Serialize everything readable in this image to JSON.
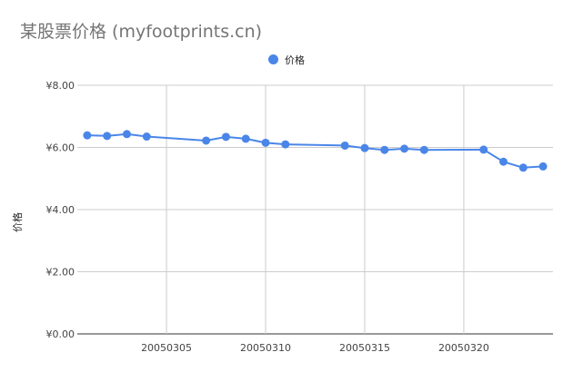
{
  "chart_data": {
    "type": "line",
    "title": "某股票价格 (myfootprints.cn)",
    "ylabel": "价格",
    "xlabel": "",
    "legend": {
      "position": "top",
      "entries": [
        "价格"
      ]
    },
    "grid": true,
    "ylim": [
      0,
      8
    ],
    "yticks": [
      "¥0.00",
      "¥2.00",
      "¥4.00",
      "¥6.00",
      "¥8.00"
    ],
    "xlim": [
      20050301,
      20050324
    ],
    "xticks": [
      "20050305",
      "20050310",
      "20050315",
      "20050320"
    ],
    "series": [
      {
        "name": "价格",
        "color": "#4a86e8",
        "points": [
          {
            "x": 20050301,
            "y": 6.39
          },
          {
            "x": 20050302,
            "y": 6.37
          },
          {
            "x": 20050303,
            "y": 6.43
          },
          {
            "x": 20050304,
            "y": 6.35
          },
          {
            "x": 20050307,
            "y": 6.22
          },
          {
            "x": 20050308,
            "y": 6.34
          },
          {
            "x": 20050309,
            "y": 6.28
          },
          {
            "x": 20050310,
            "y": 6.15
          },
          {
            "x": 20050311,
            "y": 6.1
          },
          {
            "x": 20050314,
            "y": 6.06
          },
          {
            "x": 20050315,
            "y": 5.98
          },
          {
            "x": 20050316,
            "y": 5.92
          },
          {
            "x": 20050317,
            "y": 5.96
          },
          {
            "x": 20050318,
            "y": 5.92
          },
          {
            "x": 20050321,
            "y": 5.93
          },
          {
            "x": 20050322,
            "y": 5.54
          },
          {
            "x": 20050323,
            "y": 5.35
          },
          {
            "x": 20050324,
            "y": 5.39
          }
        ]
      }
    ]
  }
}
